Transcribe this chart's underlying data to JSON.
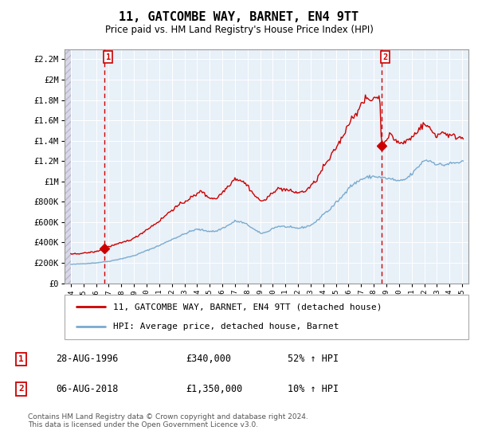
{
  "title": "11, GATCOMBE WAY, BARNET, EN4 9TT",
  "subtitle": "Price paid vs. HM Land Registry's House Price Index (HPI)",
  "legend_line1": "11, GATCOMBE WAY, BARNET, EN4 9TT (detached house)",
  "legend_line2": "HPI: Average price, detached house, Barnet",
  "footer": "Contains HM Land Registry data © Crown copyright and database right 2024.\nThis data is licensed under the Open Government Licence v3.0.",
  "transactions": [
    {
      "num": 1,
      "date": "28-AUG-1996",
      "price": "£340,000",
      "hpi": "52% ↑ HPI"
    },
    {
      "num": 2,
      "date": "06-AUG-2018",
      "price": "£1,350,000",
      "hpi": "10% ↑ HPI"
    }
  ],
  "sale1_year": 1996.65,
  "sale1_price": 340000,
  "sale2_year": 2018.6,
  "sale2_price": 1350000,
  "ylim": [
    0,
    2300000
  ],
  "xlim_left": 1993.5,
  "xlim_right": 2025.5,
  "yticks": [
    0,
    200000,
    400000,
    600000,
    800000,
    1000000,
    1200000,
    1400000,
    1600000,
    1800000,
    2000000,
    2200000
  ],
  "ytick_labels": [
    "£0",
    "£200K",
    "£400K",
    "£600K",
    "£800K",
    "£1M",
    "£1.2M",
    "£1.4M",
    "£1.6M",
    "£1.8M",
    "£2M",
    "£2.2M"
  ],
  "red_color": "#cc0000",
  "blue_color": "#7aabcf",
  "plot_bg": "#e8f0f8",
  "grid_color": "#ffffff"
}
